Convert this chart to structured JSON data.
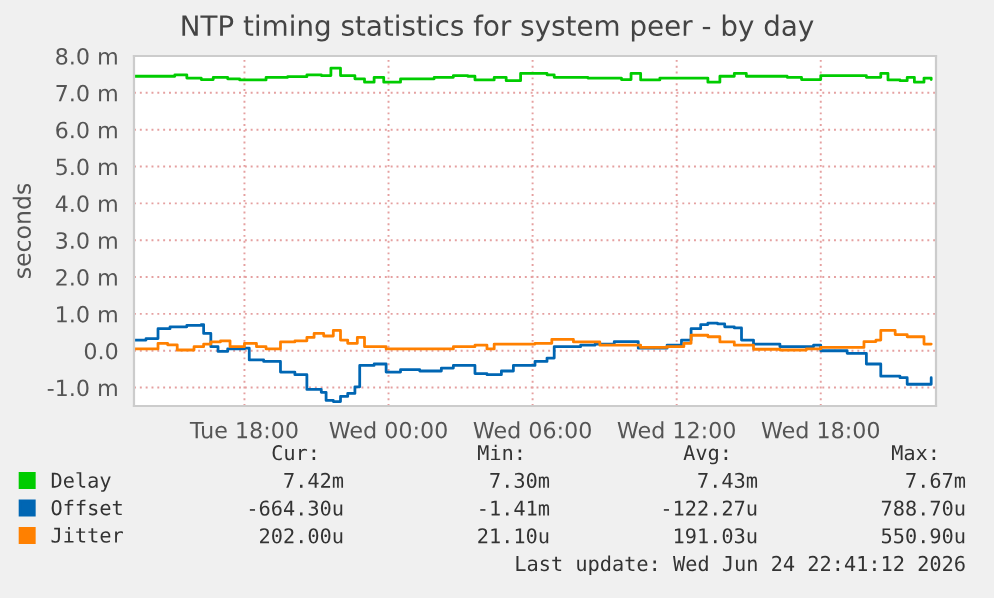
{
  "chart_data": {
    "type": "step",
    "title": "NTP timing statistics for system peer - by day",
    "ylabel": "seconds",
    "xlim": [
      "2026-06-23T13:24",
      "2026-06-24T22:48"
    ],
    "ylim": [
      -1.5,
      8.0
    ],
    "xticks": [
      {
        "value": "2026-06-23T18:00",
        "label": "Tue 18:00"
      },
      {
        "value": "2026-06-24T00:00",
        "label": "Wed 00:00"
      },
      {
        "value": "2026-06-24T06:00",
        "label": "Wed 06:00"
      },
      {
        "value": "2026-06-24T12:00",
        "label": "Wed 12:00"
      },
      {
        "value": "2026-06-24T18:00",
        "label": "Wed 18:00"
      }
    ],
    "yticks": [
      {
        "value": -1,
        "label": "-1.0 m"
      },
      {
        "value": 0,
        "label": "0.0"
      },
      {
        "value": 1,
        "label": "1.0 m"
      },
      {
        "value": 2,
        "label": "2.0 m"
      },
      {
        "value": 3,
        "label": "3.0 m"
      },
      {
        "value": 4,
        "label": "4.0 m"
      },
      {
        "value": 5,
        "label": "5.0 m"
      },
      {
        "value": 6,
        "label": "6.0 m"
      },
      {
        "value": 7,
        "label": "7.0 m"
      },
      {
        "value": 8,
        "label": "8.0 m"
      }
    ],
    "grid": true,
    "legend": "bottom left",
    "series": [
      {
        "name": "Delay",
        "color": "#00cc00",
        "x": [
          "2026-06-23T13:24",
          "2026-06-23T14:12",
          "2026-06-23T15:06",
          "2026-06-23T15:36",
          "2026-06-23T16:12",
          "2026-06-23T16:42",
          "2026-06-23T17:18",
          "2026-06-23T17:48",
          "2026-06-23T18:54",
          "2026-06-23T19:48",
          "2026-06-23T20:36",
          "2026-06-23T21:12",
          "2026-06-23T21:36",
          "2026-06-23T22:00",
          "2026-06-23T22:36",
          "2026-06-23T23:00",
          "2026-06-23T23:24",
          "2026-06-23T23:48",
          "2026-06-24T00:30",
          "2026-06-24T01:54",
          "2026-06-24T02:42",
          "2026-06-24T03:18",
          "2026-06-24T03:36",
          "2026-06-24T04:24",
          "2026-06-24T04:54",
          "2026-06-24T05:30",
          "2026-06-24T06:36",
          "2026-06-24T06:54",
          "2026-06-24T08:18",
          "2026-06-24T09:42",
          "2026-06-24T10:06",
          "2026-06-24T10:30",
          "2026-06-24T11:18",
          "2026-06-24T13:00",
          "2026-06-24T13:18",
          "2026-06-24T13:48",
          "2026-06-24T14:24",
          "2026-06-24T14:54",
          "2026-06-24T16:36",
          "2026-06-24T17:12",
          "2026-06-24T18:00",
          "2026-06-24T19:54",
          "2026-06-24T20:30",
          "2026-06-24T20:48",
          "2026-06-24T21:18",
          "2026-06-24T21:36",
          "2026-06-24T21:54",
          "2026-06-24T22:18",
          "2026-06-24T22:36"
        ],
        "values": [
          7.45,
          7.45,
          7.49,
          7.4,
          7.36,
          7.42,
          7.38,
          7.35,
          7.42,
          7.44,
          7.49,
          7.47,
          7.67,
          7.47,
          7.38,
          7.29,
          7.42,
          7.29,
          7.38,
          7.42,
          7.47,
          7.45,
          7.35,
          7.42,
          7.33,
          7.53,
          7.49,
          7.42,
          7.4,
          7.36,
          7.53,
          7.35,
          7.4,
          7.4,
          7.29,
          7.45,
          7.53,
          7.45,
          7.42,
          7.36,
          7.47,
          7.42,
          7.53,
          7.35,
          7.33,
          7.42,
          7.29,
          7.4,
          7.36
        ]
      },
      {
        "name": "Offset",
        "color": "#0066b3",
        "x": [
          "2026-06-23T13:24",
          "2026-06-23T13:54",
          "2026-06-23T14:24",
          "2026-06-23T14:54",
          "2026-06-23T15:36",
          "2026-06-23T16:12",
          "2026-06-23T16:18",
          "2026-06-23T16:36",
          "2026-06-23T16:54",
          "2026-06-23T17:18",
          "2026-06-23T18:00",
          "2026-06-23T18:12",
          "2026-06-23T18:48",
          "2026-06-23T19:30",
          "2026-06-23T20:06",
          "2026-06-23T20:36",
          "2026-06-23T21:12",
          "2026-06-23T21:24",
          "2026-06-23T21:42",
          "2026-06-23T22:00",
          "2026-06-23T22:18",
          "2026-06-23T22:36",
          "2026-06-23T22:48",
          "2026-06-23T23:24",
          "2026-06-23T23:54",
          "2026-06-24T00:30",
          "2026-06-24T01:18",
          "2026-06-24T02:12",
          "2026-06-24T02:42",
          "2026-06-24T03:18",
          "2026-06-24T03:36",
          "2026-06-24T04:06",
          "2026-06-24T04:42",
          "2026-06-24T05:12",
          "2026-06-24T06:06",
          "2026-06-24T06:36",
          "2026-06-24T06:54",
          "2026-06-24T08:00",
          "2026-06-24T08:36",
          "2026-06-24T09:24",
          "2026-06-24T10:06",
          "2026-06-24T10:24",
          "2026-06-24T11:36",
          "2026-06-24T12:12",
          "2026-06-24T12:36",
          "2026-06-24T13:00",
          "2026-06-24T13:18",
          "2026-06-24T13:42",
          "2026-06-24T14:00",
          "2026-06-24T14:24",
          "2026-06-24T14:42",
          "2026-06-24T15:12",
          "2026-06-24T16:18",
          "2026-06-24T17:12",
          "2026-06-24T17:42",
          "2026-06-24T18:00",
          "2026-06-24T18:48",
          "2026-06-24T19:06",
          "2026-06-24T19:42",
          "2026-06-24T19:54",
          "2026-06-24T20:30",
          "2026-06-24T21:18",
          "2026-06-24T21:36",
          "2026-06-24T22:06",
          "2026-06-24T22:36"
        ],
        "values": [
          0.29,
          0.33,
          0.6,
          0.65,
          0.69,
          0.71,
          0.47,
          0.11,
          -0.02,
          0.05,
          0.07,
          -0.25,
          -0.29,
          -0.58,
          -0.65,
          -1.05,
          -1.13,
          -1.35,
          -1.38,
          -1.24,
          -1.16,
          -0.98,
          -0.4,
          -0.36,
          -0.58,
          -0.51,
          -0.55,
          -0.47,
          -0.4,
          -0.4,
          -0.62,
          -0.65,
          -0.55,
          -0.4,
          -0.29,
          -0.2,
          0.11,
          0.15,
          0.18,
          0.25,
          0.25,
          0.07,
          0.15,
          0.29,
          0.6,
          0.71,
          0.75,
          0.73,
          0.65,
          0.62,
          0.29,
          0.18,
          0.11,
          0.11,
          0.15,
          0,
          0,
          -0.07,
          -0.07,
          -0.36,
          -0.69,
          -0.73,
          -0.91,
          -0.91,
          -0.73
        ]
      },
      {
        "name": "Jitter",
        "color": "#ff8000",
        "x": [
          "2026-06-23T13:24",
          "2026-06-23T14:06",
          "2026-06-23T14:24",
          "2026-06-23T14:48",
          "2026-06-23T15:12",
          "2026-06-23T15:54",
          "2026-06-23T16:18",
          "2026-06-23T16:36",
          "2026-06-23T17:00",
          "2026-06-23T17:24",
          "2026-06-23T18:00",
          "2026-06-23T18:30",
          "2026-06-23T18:54",
          "2026-06-23T19:24",
          "2026-06-23T19:30",
          "2026-06-23T20:06",
          "2026-06-23T20:36",
          "2026-06-23T20:54",
          "2026-06-23T21:18",
          "2026-06-23T21:42",
          "2026-06-23T22:00",
          "2026-06-23T22:18",
          "2026-06-23T22:42",
          "2026-06-23T23:00",
          "2026-06-23T23:54",
          "2026-06-24T00:30",
          "2026-06-24T01:36",
          "2026-06-24T02:42",
          "2026-06-24T03:36",
          "2026-06-24T04:06",
          "2026-06-24T04:24",
          "2026-06-24T06:06",
          "2026-06-24T06:48",
          "2026-06-24T07:42",
          "2026-06-24T08:48",
          "2026-06-24T10:06",
          "2026-06-24T10:30",
          "2026-06-24T11:36",
          "2026-06-24T12:18",
          "2026-06-24T12:36",
          "2026-06-24T13:18",
          "2026-06-24T13:48",
          "2026-06-24T14:24",
          "2026-06-24T15:12",
          "2026-06-24T16:18",
          "2026-06-24T17:24",
          "2026-06-24T18:00",
          "2026-06-24T19:24",
          "2026-06-24T19:48",
          "2026-06-24T20:18",
          "2026-06-24T20:30",
          "2026-06-24T21:06",
          "2026-06-24T21:36",
          "2026-06-24T22:18",
          "2026-06-24T22:36"
        ],
        "values": [
          0.05,
          0.05,
          0.2,
          0.16,
          0.02,
          0.11,
          0.18,
          0.24,
          0.27,
          0.11,
          0.2,
          0.11,
          0.05,
          0.05,
          0.24,
          0.27,
          0.36,
          0.47,
          0.4,
          0.55,
          0.29,
          0.2,
          0.36,
          0.11,
          0.05,
          0.05,
          0.05,
          0.11,
          0.15,
          0.05,
          0.18,
          0.2,
          0.31,
          0.24,
          0.15,
          0.15,
          0.09,
          0.11,
          0.2,
          0.42,
          0.38,
          0.24,
          0.15,
          0.04,
          0.02,
          0.05,
          0.09,
          0.09,
          0.25,
          0.29,
          0.55,
          0.44,
          0.38,
          0.18,
          0.18
        ]
      }
    ],
    "annotations": [
      "Cur:",
      "Min:",
      "Avg:",
      "Max:",
      "7.42m",
      "7.30m",
      "7.43m",
      "7.67m",
      "-664.30u",
      "-1.41m",
      "-122.27u",
      "788.70u",
      "202.00u",
      "21.10u",
      "191.03u",
      "550.90u",
      "Last update: Wed Jun 24 22:41:12 2026"
    ]
  }
}
